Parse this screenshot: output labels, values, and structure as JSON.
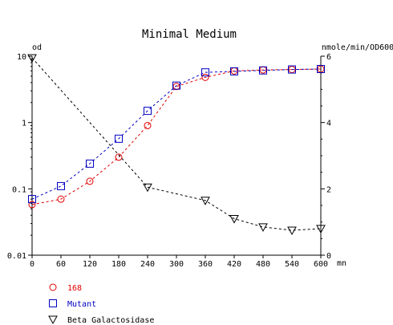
{
  "chart_data": {
    "type": "line",
    "title": "Minimal Medium",
    "xlabel": "mn",
    "ylabel_left": "od",
    "ylabel_right": "nmole/min/OD600",
    "x": [
      0,
      60,
      120,
      180,
      240,
      300,
      360,
      420,
      480,
      540,
      600
    ],
    "xlim": [
      0,
      600
    ],
    "x_ticks": [
      "0",
      "60",
      "120",
      "180",
      "240",
      "300",
      "360",
      "420",
      "480",
      "540",
      "600"
    ],
    "y_left": {
      "scale": "log",
      "lim": [
        0.01,
        10
      ],
      "ticks": [
        10,
        1,
        0.1,
        0.01
      ],
      "tick_labels": [
        "10",
        "1",
        "0.1",
        "0.01"
      ]
    },
    "y_right": {
      "scale": "linear",
      "lim": [
        0,
        6
      ],
      "ticks": [
        0,
        2,
        4,
        6
      ],
      "tick_labels": [
        "0",
        "2",
        "4",
        "6"
      ]
    },
    "grid": false,
    "legend_position": "bottom-left",
    "series": [
      {
        "name": "168",
        "axis": "left",
        "color": "#e00000",
        "marker": "circle",
        "dash": "3,3",
        "values": [
          0.058,
          0.07,
          0.13,
          0.3,
          0.9,
          3.5,
          4.8,
          6.0,
          6.2,
          6.3,
          6.4
        ]
      },
      {
        "name": "Mutant",
        "axis": "left",
        "color": "#0000c0",
        "marker": "square",
        "dash": "3,3",
        "values": [
          0.07,
          0.11,
          0.24,
          0.57,
          1.5,
          3.6,
          5.7,
          5.9,
          6.1,
          6.3,
          6.4
        ]
      },
      {
        "name": "Beta Galactosidase",
        "axis": "right",
        "color": "#000000",
        "marker": "triangle-down",
        "dash": "3,3",
        "x": [
          0,
          240,
          360,
          420,
          480,
          540,
          600
        ],
        "values": [
          5.95,
          2.05,
          1.65,
          1.1,
          0.85,
          0.75,
          0.8
        ]
      }
    ]
  }
}
